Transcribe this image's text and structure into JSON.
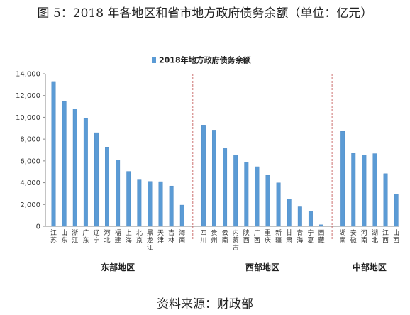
{
  "title": "图 5：2018 年各地区和省市地方政府债务余额（单位：亿元）",
  "source": "资料来源：财政部",
  "chart_data": {
    "type": "bar",
    "legend": {
      "label": "2018年地方政府债务余额",
      "position": "top-center"
    },
    "color": "#5b9bd5",
    "ylim": [
      0,
      14000
    ],
    "yticks": [
      0,
      2000,
      4000,
      6000,
      8000,
      10000,
      12000,
      14000
    ],
    "ytick_labels": [
      "0",
      "2,000",
      "4,000",
      "6,000",
      "8,000",
      "10,000",
      "12,000",
      "14,000"
    ],
    "grid": false,
    "groups": [
      {
        "name": "东部地区",
        "categories": [
          "江苏",
          "山东",
          "浙江",
          "广东",
          "辽宁",
          "河北",
          "福建",
          "上海",
          "北京",
          "黑龙江",
          "天津",
          "吉林",
          "海南"
        ],
        "values": [
          13290,
          11440,
          10790,
          9900,
          8590,
          7280,
          6080,
          5040,
          4260,
          4120,
          4100,
          3700,
          1950
        ]
      },
      {
        "name": "西部地区",
        "categories": [
          "四川",
          "贵州",
          "云南",
          "内蒙古",
          "陕西",
          "广西",
          "重庆",
          "新疆",
          "甘肃",
          "青海",
          "宁夏",
          "西藏"
        ],
        "values": [
          9290,
          8830,
          7140,
          6560,
          5880,
          5470,
          4690,
          3990,
          2490,
          1790,
          1390,
          140
        ]
      },
      {
        "name": "中部地区",
        "categories": [
          "湖南",
          "安徽",
          "河南",
          "湖北",
          "江西",
          "山西"
        ],
        "values": [
          8710,
          6700,
          6550,
          6670,
          4830,
          2950
        ]
      }
    ]
  }
}
